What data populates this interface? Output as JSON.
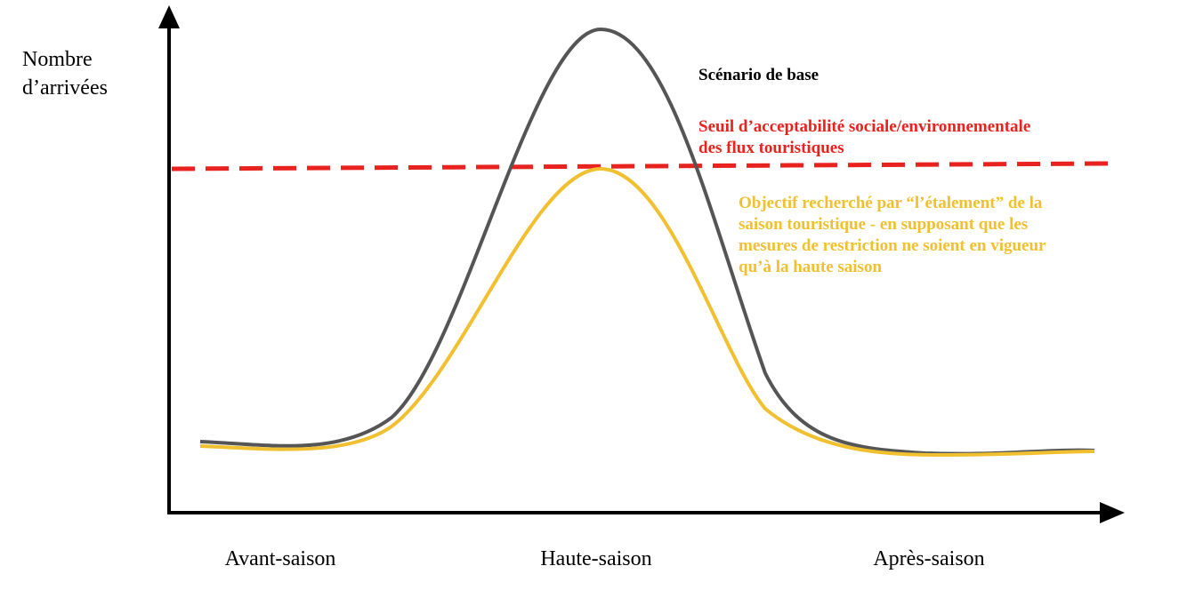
{
  "y_axis_label": [
    "Nombre",
    "d’arrivées"
  ],
  "x_axis_labels": [
    "Avant-saison",
    "Haute-saison",
    "Après-saison"
  ],
  "legend": {
    "base": "Scénario de base",
    "threshold": [
      "Seuil d’acceptabilité sociale/environnementale",
      "des flux touristiques"
    ],
    "objective": [
      "Objectif recherché par “l’étalement” de la",
      "saison touristique - en supposant que les",
      "mesures de restriction ne soient en vigueur",
      "qu’à la haute saison"
    ]
  }
}
